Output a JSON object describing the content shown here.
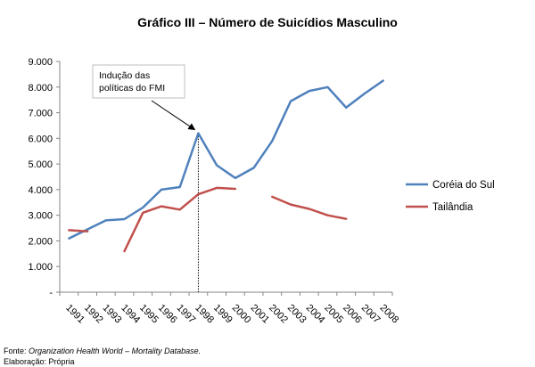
{
  "chart_data": {
    "type": "line",
    "title": "Gráfico III – Número de Suicídios Masculino",
    "xlabel": "",
    "ylabel": "",
    "categories": [
      "1991",
      "1992",
      "1993",
      "1994",
      "1995",
      "1996",
      "1997",
      "1998",
      "1999",
      "2000",
      "2001",
      "2002",
      "2003",
      "2004",
      "2005",
      "2006",
      "2007",
      "2008"
    ],
    "ylim": [
      0,
      9000
    ],
    "yticks": [
      0,
      1000,
      2000,
      3000,
      4000,
      5000,
      6000,
      7000,
      8000,
      9000
    ],
    "ytick_labels": [
      "-",
      "1.000",
      "2.000",
      "3.000",
      "4.000",
      "5.000",
      "6.000",
      "7.000",
      "8.000",
      "9.000"
    ],
    "grid": false,
    "legend_position": "right",
    "series": [
      {
        "name": "Coréia do Sul",
        "color": "#4F81BD",
        "values": [
          2100,
          2450,
          2800,
          2850,
          3300,
          4000,
          4100,
          6200,
          4950,
          4450,
          4850,
          5900,
          7450,
          7850,
          8000,
          7200,
          7750,
          8250
        ]
      },
      {
        "name": "Tailândia",
        "color": "#C0504D",
        "values": [
          2420,
          2370,
          null,
          1600,
          3100,
          3350,
          3220,
          3820,
          4070,
          4030,
          null,
          3720,
          3420,
          3250,
          3000,
          2860,
          null,
          null
        ]
      }
    ],
    "annotation": {
      "lines": [
        "Indução das",
        "políticas do FMI"
      ],
      "points_to_category": "1998"
    },
    "source_label": "Fonte: ",
    "source_text": "Organization Health World – Mortality Database.",
    "credit": "Elaboração: Própria"
  }
}
